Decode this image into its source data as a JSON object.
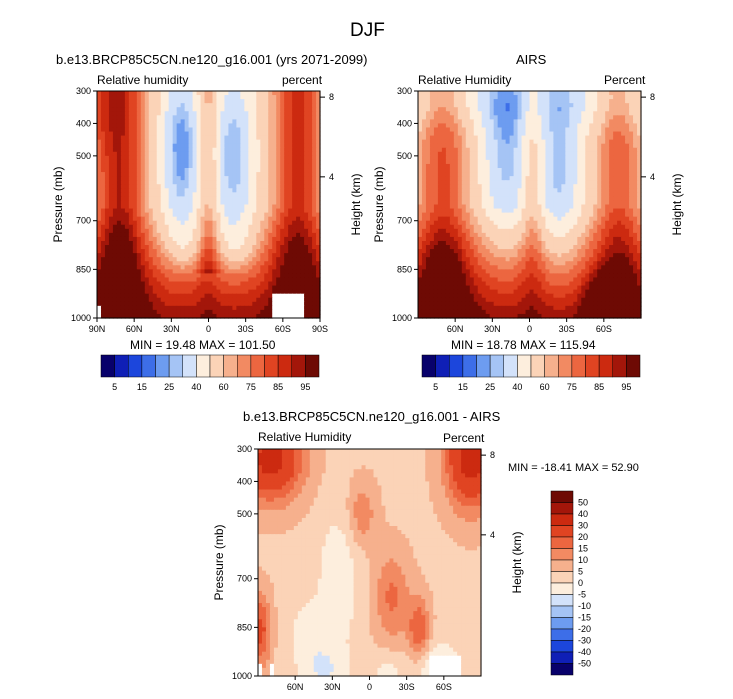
{
  "figure_title": "DJF",
  "colors": {
    "text": "#000000",
    "missing": "#ffffff",
    "abs_levels": [
      "#08016b",
      "#0f1fb6",
      "#1c46dc",
      "#3d6ee8",
      "#6d9cf0",
      "#a5c4f5",
      "#d3e2fa",
      "#fdeedd",
      "#fbd3b7",
      "#f6b08d",
      "#f28a62",
      "#ec6640",
      "#e04422",
      "#cc2a10",
      "#a3160a",
      "#6e0a04"
    ],
    "diff_levels": [
      "#08016b",
      "#0f1fb6",
      "#1c46dc",
      "#3d6ee8",
      "#6d9cf0",
      "#a5c4f5",
      "#d3e2fa",
      "#fdeedd",
      "#fbd3b7",
      "#f6b08d",
      "#f28a62",
      "#ec6640",
      "#e04422",
      "#cc2a10",
      "#a3160a",
      "#6e0a04"
    ]
  },
  "chart_data": [
    {
      "id": "model",
      "type": "heatmap",
      "title": "b.e13.BRCP85C5CN.ne120_g16.001 (yrs 2071-2099)",
      "left_label": "Relative humidity",
      "right_label": "percent",
      "ylabel": "Pressure (mb)",
      "ylabel_right": "Height (km)",
      "yticks": [
        300,
        400,
        500,
        700,
        850,
        1000
      ],
      "yticks_right": [
        "8",
        "4"
      ],
      "yticks_right_values": [
        8,
        4
      ],
      "xticks": [
        "90N",
        "60N",
        "30N",
        "0",
        "30S",
        "60S",
        "90S"
      ],
      "xtick_values": [
        90,
        60,
        30,
        0,
        -30,
        -60,
        -90
      ],
      "xlim": [
        90,
        -90
      ],
      "ylim": [
        1000,
        300
      ],
      "stats": "MIN =  19.48   MAX = 101.50",
      "min": 19.48,
      "max": 101.5,
      "colorbar_labels": [
        "5",
        "15",
        "25",
        "40",
        "60",
        "75",
        "85",
        "95"
      ],
      "colorbar_levels": [
        5,
        10,
        15,
        20,
        25,
        30,
        40,
        50,
        60,
        65,
        70,
        75,
        80,
        85,
        90,
        95
      ]
    },
    {
      "id": "airs",
      "type": "heatmap",
      "title": "AIRS",
      "left_label": "Relative Humidity",
      "right_label": "Percent",
      "ylabel": "Pressure (mb)",
      "ylabel_right": "Height (km)",
      "yticks": [
        300,
        400,
        500,
        700,
        850,
        1000
      ],
      "yticks_right": [
        "8",
        "4"
      ],
      "yticks_right_values": [
        8,
        4
      ],
      "xticks": [
        "60N",
        "30N",
        "0",
        "30S",
        "60S"
      ],
      "xtick_values": [
        60,
        30,
        0,
        -30,
        -60
      ],
      "xlim": [
        90,
        -90
      ],
      "ylim": [
        1000,
        300
      ],
      "stats": "MIN =  18.78   MAX = 115.94",
      "min": 18.78,
      "max": 115.94,
      "colorbar_labels": [
        "5",
        "15",
        "25",
        "40",
        "60",
        "75",
        "85",
        "95"
      ],
      "colorbar_levels": [
        5,
        10,
        15,
        20,
        25,
        30,
        40,
        50,
        60,
        65,
        70,
        75,
        80,
        85,
        90,
        95
      ]
    },
    {
      "id": "diff",
      "type": "heatmap",
      "title": "b.e13.BRCP85C5CN.ne120_g16.001 - AIRS",
      "left_label": "Relative Humidity",
      "right_label": "Percent",
      "ylabel": "Pressure (mb)",
      "ylabel_right": "Height (km)",
      "yticks": [
        300,
        400,
        500,
        700,
        850,
        1000
      ],
      "yticks_right": [
        "8",
        "4"
      ],
      "yticks_right_values": [
        8,
        4
      ],
      "xticks": [
        "60N",
        "30N",
        "0",
        "30S",
        "60S"
      ],
      "xtick_values": [
        60,
        30,
        0,
        -30,
        -60
      ],
      "xlim": [
        90,
        -90
      ],
      "ylim": [
        1000,
        300
      ],
      "stats": "MIN = -18.41   MAX =  52.90",
      "min": -18.41,
      "max": 52.9,
      "colorbar_labels": [
        "50",
        "40",
        "30",
        "20",
        "15",
        "10",
        "5",
        "0",
        "-5",
        "-10",
        "-15",
        "-20",
        "-30",
        "-40",
        "-50"
      ],
      "colorbar_levels": [
        50,
        40,
        30,
        20,
        15,
        10,
        5,
        0,
        -5,
        -10,
        -15,
        -20,
        -30,
        -40,
        -50
      ]
    }
  ]
}
